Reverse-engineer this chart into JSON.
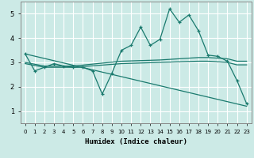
{
  "xlabel": "Humidex (Indice chaleur)",
  "ylabel": "",
  "bg_color": "#cceae6",
  "line_color": "#1a7a6e",
  "grid_color": "#ffffff",
  "xlim": [
    -0.5,
    23.5
  ],
  "ylim": [
    0.5,
    5.5
  ],
  "xticks": [
    0,
    1,
    2,
    3,
    4,
    5,
    6,
    7,
    8,
    9,
    10,
    11,
    12,
    13,
    14,
    15,
    16,
    17,
    18,
    19,
    20,
    21,
    22,
    23
  ],
  "yticks": [
    1,
    2,
    3,
    4,
    5
  ],
  "series_main": {
    "x": [
      0,
      1,
      2,
      3,
      4,
      5,
      6,
      7,
      8,
      9,
      10,
      11,
      12,
      13,
      14,
      15,
      16,
      17,
      18,
      19,
      20,
      21,
      22,
      23
    ],
    "y": [
      3.35,
      2.65,
      2.8,
      2.95,
      2.85,
      2.8,
      2.8,
      2.65,
      1.7,
      2.55,
      3.5,
      3.7,
      4.45,
      3.7,
      3.95,
      5.2,
      4.65,
      4.95,
      4.3,
      3.3,
      3.25,
      3.05,
      2.25,
      1.3
    ]
  },
  "series_diagonal": {
    "x": [
      0,
      23
    ],
    "y": [
      3.35,
      1.2
    ]
  },
  "series_flat1": {
    "x": [
      0,
      2,
      5,
      10,
      14,
      18,
      19,
      21,
      22,
      23
    ],
    "y": [
      3.0,
      2.85,
      2.85,
      3.05,
      3.1,
      3.2,
      3.2,
      3.15,
      3.05,
      3.05
    ]
  },
  "series_flat2": {
    "x": [
      0,
      2,
      5,
      10,
      14,
      18,
      19,
      21,
      22,
      23
    ],
    "y": [
      2.95,
      2.8,
      2.8,
      2.95,
      3.0,
      3.05,
      3.05,
      3.0,
      2.9,
      2.9
    ]
  }
}
